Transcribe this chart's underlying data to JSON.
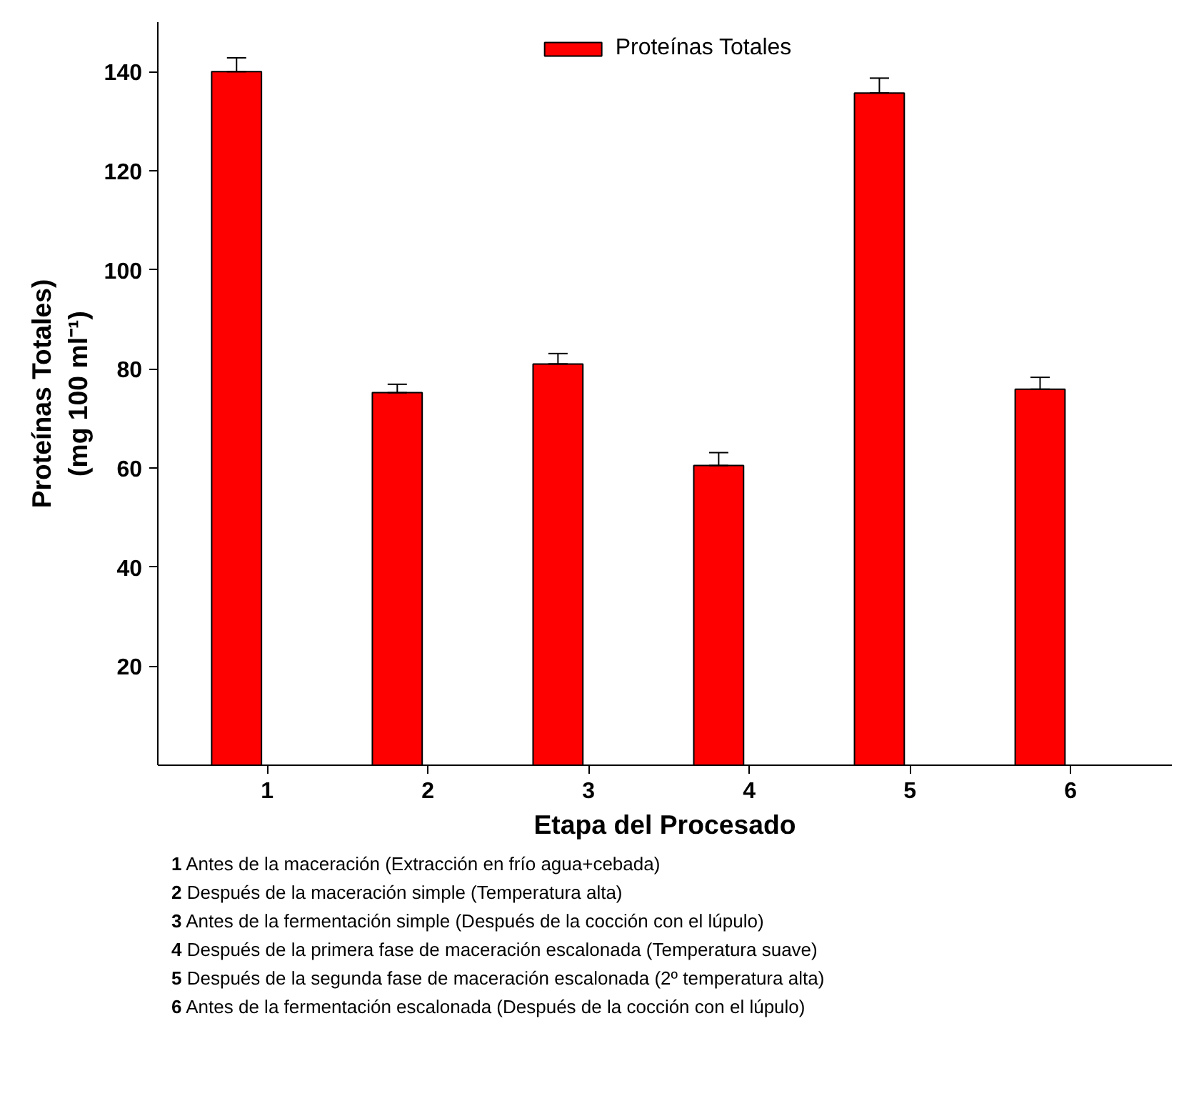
{
  "chart_data": {
    "type": "bar",
    "xlabel": "Etapa del Procesado",
    "ylabel": "Proteínas Totales)\n(mg 100 ml⁻¹)",
    "categories": [
      "1",
      "2",
      "3",
      "4",
      "5",
      "6"
    ],
    "series": [
      {
        "name": "Proteínas Totales",
        "color": "#ff0000",
        "values": [
          140,
          75.2,
          81,
          60.5,
          135.7,
          75.9
        ],
        "errors": [
          [
            140,
            142.8
          ],
          [
            75.2,
            76.9
          ],
          [
            81,
            83.1
          ],
          [
            60.5,
            63.1
          ],
          [
            135.7,
            138.7
          ],
          [
            75.9,
            78.3
          ]
        ]
      }
    ],
    "ylim": [
      0,
      150
    ],
    "yticks": [
      20,
      40,
      60,
      80,
      100,
      120,
      140
    ],
    "grid": false,
    "legend": "top",
    "annotations": [
      "1 Antes de la maceración (Extracción en frío agua+cebada)",
      "2 Después de la maceración simple (Temperatura alta)",
      "3 Antes de la fermentación simple (Después de la cocción con el lúpulo)",
      "4 Después de la primera fase de maceración escalonada (Temperatura suave)",
      "5 Después de la segunda fase de maceración escalonada (2º temperatura alta)",
      "6 Antes de la fermentación escalonada (Después de la cocción con el lúpulo)"
    ]
  }
}
